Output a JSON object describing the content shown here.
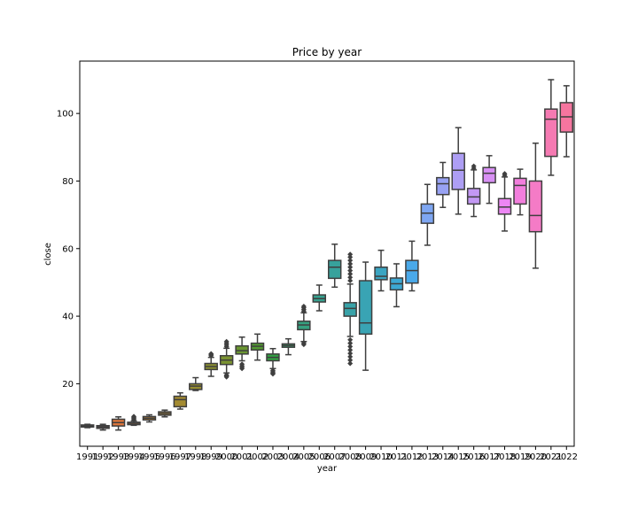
{
  "chart_data": {
    "type": "boxplot",
    "title": "Price by year",
    "xlabel": "year",
    "ylabel": "close",
    "ylim": [
      1.5,
      115.5
    ],
    "yticks": [
      20,
      40,
      60,
      80,
      100
    ],
    "grid": false,
    "categories": [
      "1991",
      "1992",
      "1993",
      "1994",
      "1995",
      "1996",
      "1997",
      "1998",
      "1999",
      "2000",
      "2001",
      "2002",
      "2003",
      "2004",
      "2005",
      "2006",
      "2007",
      "2008",
      "2009",
      "2010",
      "2011",
      "2012",
      "2013",
      "2014",
      "2015",
      "2016",
      "2017",
      "2018",
      "2019",
      "2020",
      "2021",
      "2022"
    ],
    "boxes": [
      {
        "year": "1991",
        "wlo": 7.0,
        "q1": 7.2,
        "med": 7.5,
        "q3": 7.8,
        "whi": 8.0,
        "fliers": [],
        "color": "#f77189"
      },
      {
        "year": "1992",
        "wlo": 6.3,
        "q1": 6.8,
        "med": 7.2,
        "q3": 7.6,
        "whi": 8.0,
        "fliers": [],
        "color": "#f2715e"
      },
      {
        "year": "1993",
        "wlo": 6.3,
        "q1": 7.5,
        "med": 8.5,
        "q3": 9.5,
        "whi": 10.2,
        "fliers": [],
        "color": "#e0773b"
      },
      {
        "year": "1994",
        "wlo": 7.7,
        "q1": 7.9,
        "med": 8.3,
        "q3": 8.6,
        "whi": 9.0,
        "fliers": [
          9.4,
          9.7,
          10.0,
          10.3
        ],
        "color": "#ce7f31"
      },
      {
        "year": "1995",
        "wlo": 8.7,
        "q1": 9.3,
        "med": 9.8,
        "q3": 10.3,
        "whi": 10.8,
        "fliers": [],
        "color": "#bf8431"
      },
      {
        "year": "1996",
        "wlo": 10.2,
        "q1": 10.7,
        "med": 11.2,
        "q3": 11.7,
        "whi": 12.2,
        "fliers": [],
        "color": "#b18831"
      },
      {
        "year": "1997",
        "wlo": 12.5,
        "q1": 13.2,
        "med": 15.3,
        "q3": 16.3,
        "whi": 17.3,
        "fliers": [],
        "color": "#a48b31"
      },
      {
        "year": "1998",
        "wlo": 18.0,
        "q1": 18.3,
        "med": 19.3,
        "q3": 20.0,
        "whi": 21.8,
        "fliers": [],
        "color": "#978e31"
      },
      {
        "year": "1999",
        "wlo": 22.2,
        "q1": 24.2,
        "med": 25.1,
        "q3": 26.0,
        "whi": 27.8,
        "fliers": [
          28.3,
          28.6,
          28.9
        ],
        "color": "#8a9031"
      },
      {
        "year": "2000",
        "wlo": 23.2,
        "q1": 25.7,
        "med": 27.0,
        "q3": 28.3,
        "whi": 30.5,
        "fliers": [
          31.0,
          31.5,
          32.0,
          32.5,
          22.6,
          22.3,
          22.0
        ],
        "color": "#7b9331"
      },
      {
        "year": "2001",
        "wlo": 26.8,
        "q1": 28.8,
        "med": 29.8,
        "q3": 31.2,
        "whi": 33.8,
        "fliers": [
          25.8,
          25.3,
          24.9,
          24.5
        ],
        "color": "#6a9631"
      },
      {
        "year": "2002",
        "wlo": 27.0,
        "q1": 30.0,
        "med": 31.1,
        "q3": 32.0,
        "whi": 34.7,
        "fliers": [],
        "color": "#529931"
      },
      {
        "year": "2003",
        "wlo": 24.5,
        "q1": 26.8,
        "med": 27.8,
        "q3": 28.8,
        "whi": 30.4,
        "fliers": [
          23.9,
          23.5,
          23.2,
          22.9
        ],
        "color": "#32a042"
      },
      {
        "year": "2004",
        "wlo": 28.6,
        "q1": 30.8,
        "med": 31.3,
        "q3": 31.8,
        "whi": 33.3,
        "fliers": [],
        "color": "#34a068"
      },
      {
        "year": "2005",
        "wlo": 32.5,
        "q1": 36.0,
        "med": 37.4,
        "q3": 38.5,
        "whi": 41.0,
        "fliers": [
          41.5,
          42.0,
          42.5,
          42.9,
          32.0,
          31.6
        ],
        "color": "#35a17f"
      },
      {
        "year": "2006",
        "wlo": 41.6,
        "q1": 44.2,
        "med": 45.2,
        "q3": 46.3,
        "whi": 49.2,
        "fliers": [],
        "color": "#36a18f"
      },
      {
        "year": "2007",
        "wlo": 48.6,
        "q1": 51.2,
        "med": 54.5,
        "q3": 56.5,
        "whi": 61.3,
        "fliers": [],
        "color": "#37a29c"
      },
      {
        "year": "2008",
        "wlo": 34.0,
        "q1": 40.0,
        "med": 42.3,
        "q3": 44.0,
        "whi": 49.5,
        "fliers": [
          50.5,
          51.5,
          52.5,
          53.5,
          54.5,
          55.5,
          56.5,
          57.5,
          58.3,
          33.0,
          32.0,
          31.0,
          30.0,
          29.0,
          28.0,
          27.0,
          26.0
        ],
        "color": "#38a2a8"
      },
      {
        "year": "2009",
        "wlo": 24.0,
        "q1": 34.7,
        "med": 38.0,
        "q3": 50.5,
        "whi": 56.0,
        "fliers": [],
        "color": "#39a4b4"
      },
      {
        "year": "2010",
        "wlo": 47.5,
        "q1": 50.8,
        "med": 51.8,
        "q3": 54.5,
        "whi": 59.5,
        "fliers": [],
        "color": "#3ba5c2"
      },
      {
        "year": "2011",
        "wlo": 42.8,
        "q1": 47.8,
        "med": 49.6,
        "q3": 51.3,
        "whi": 55.5,
        "fliers": [],
        "color": "#3ca8d3"
      },
      {
        "year": "2012",
        "wlo": 47.5,
        "q1": 49.8,
        "med": 53.5,
        "q3": 56.5,
        "whi": 62.2,
        "fliers": [],
        "color": "#4aa9e9"
      },
      {
        "year": "2013",
        "wlo": 61.0,
        "q1": 67.5,
        "med": 70.5,
        "q3": 73.2,
        "whi": 79.0,
        "fliers": [],
        "color": "#7ea6f2"
      },
      {
        "year": "2014",
        "wlo": 72.2,
        "q1": 76.0,
        "med": 79.2,
        "q3": 81.0,
        "whi": 85.5,
        "fliers": [],
        "color": "#98a2f3"
      },
      {
        "year": "2015",
        "wlo": 70.2,
        "q1": 77.5,
        "med": 83.2,
        "q3": 88.2,
        "whi": 95.8,
        "fliers": [],
        "color": "#ad9ef4"
      },
      {
        "year": "2016",
        "wlo": 69.5,
        "q1": 73.2,
        "med": 75.3,
        "q3": 77.8,
        "whi": 83.3,
        "fliers": [
          83.8,
          84.4
        ],
        "color": "#c398f4"
      },
      {
        "year": "2017",
        "wlo": 73.4,
        "q1": 79.5,
        "med": 82.3,
        "q3": 84.0,
        "whi": 87.5,
        "fliers": [],
        "color": "#d890f4"
      },
      {
        "year": "2018",
        "wlo": 65.2,
        "q1": 70.2,
        "med": 72.3,
        "q3": 74.8,
        "whi": 81.2,
        "fliers": [
          81.7,
          82.2
        ],
        "color": "#ed86f4"
      },
      {
        "year": "2019",
        "wlo": 70.0,
        "q1": 73.2,
        "med": 78.7,
        "q3": 80.8,
        "whi": 83.5,
        "fliers": [],
        "color": "#f27edd"
      },
      {
        "year": "2020",
        "wlo": 54.2,
        "q1": 65.0,
        "med": 69.8,
        "q3": 80.0,
        "whi": 91.2,
        "fliers": [],
        "color": "#f47bc6"
      },
      {
        "year": "2021",
        "wlo": 81.7,
        "q1": 87.3,
        "med": 98.3,
        "q3": 101.3,
        "whi": 110.0,
        "fliers": [],
        "color": "#f57ab2"
      },
      {
        "year": "2022",
        "wlo": 87.2,
        "q1": 94.5,
        "med": 99.0,
        "q3": 103.2,
        "whi": 108.2,
        "fliers": [],
        "color": "#f6759f"
      }
    ]
  }
}
